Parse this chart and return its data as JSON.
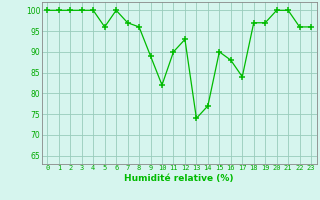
{
  "x": [
    0,
    1,
    2,
    3,
    4,
    5,
    6,
    7,
    8,
    9,
    10,
    11,
    12,
    13,
    14,
    15,
    16,
    17,
    18,
    19,
    20,
    21,
    22,
    23
  ],
  "y": [
    100,
    100,
    100,
    100,
    100,
    96,
    100,
    97,
    96,
    89,
    82,
    90,
    93,
    74,
    77,
    90,
    88,
    84,
    97,
    97,
    100,
    100,
    96,
    96
  ],
  "line_color": "#00bb00",
  "marker_color": "#00bb00",
  "bg_color": "#d6f5ee",
  "grid_color": "#99ccbb",
  "xlabel": "Humidité relative (%)",
  "xlabel_color": "#00bb00",
  "ylabel_ticks": [
    65,
    70,
    75,
    80,
    85,
    90,
    95,
    100
  ],
  "ylim": [
    63,
    102
  ],
  "xlim": [
    -0.5,
    23.5
  ],
  "tick_color": "#00aa00",
  "axis_color": "#888888"
}
